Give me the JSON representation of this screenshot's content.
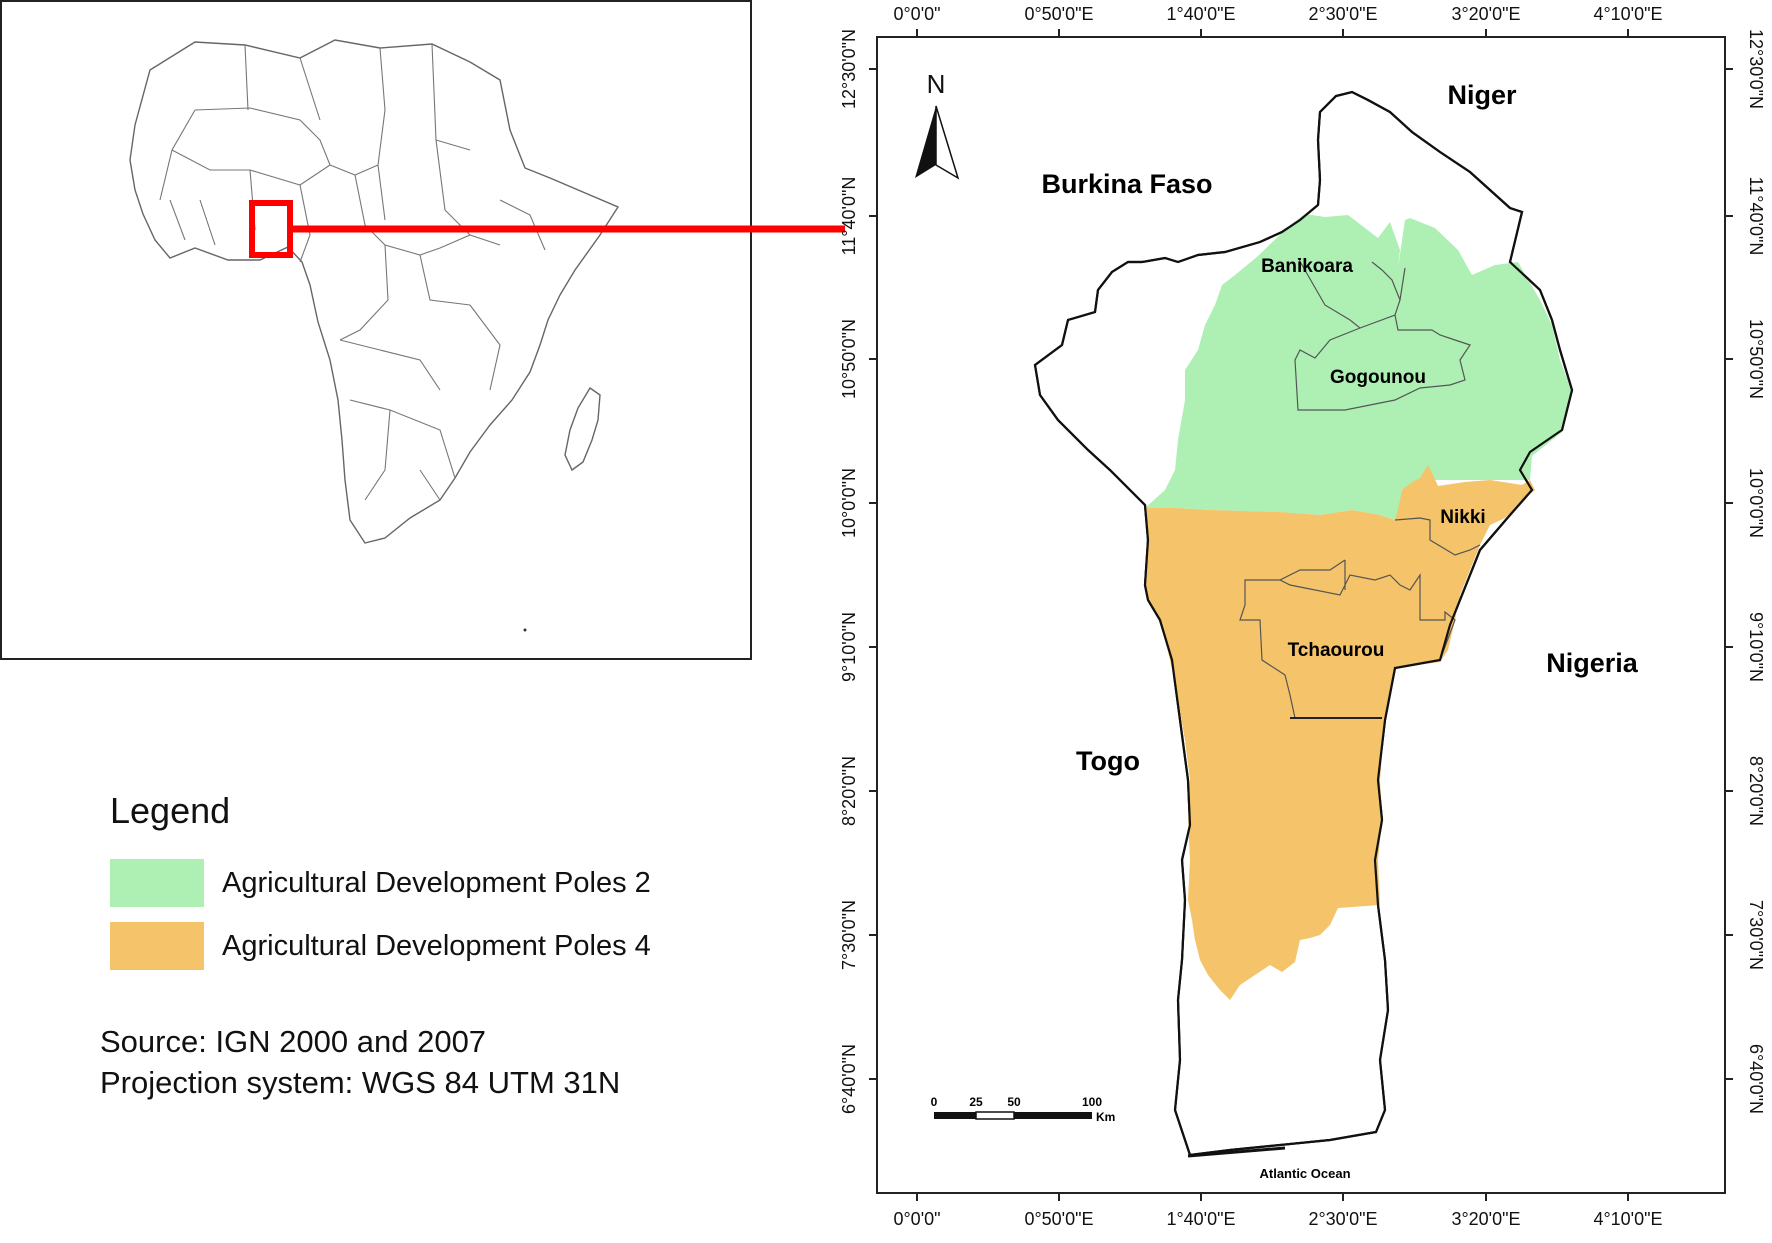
{
  "inset": {
    "highlight_color": "#ff0000"
  },
  "main_map": {
    "countries": {
      "niger": "Niger",
      "burkina": "Burkina Faso",
      "nigeria": "Nigeria",
      "togo": "Togo"
    },
    "districts": {
      "banikoara": "Banikoara",
      "gogounou": "Gogounou",
      "nikki": "Nikki",
      "tchaourou": "Tchaourou"
    },
    "ocean": "Atlantic Ocean",
    "north_arrow": "N",
    "scalebar": {
      "ticks": [
        "0",
        "25",
        "50",
        "100"
      ],
      "unit": "Km"
    },
    "lon_ticks": [
      "0°0'0\"",
      "0°50'0\"E",
      "1°40'0\"E",
      "2°30'0\"E",
      "3°20'0\"E",
      "4°10'0\"E"
    ],
    "lat_ticks": [
      "12°30'0\"N",
      "11°40'0\"N",
      "10°50'0\"N",
      "10°0'0\"N",
      "9°10'0\"N",
      "8°20'0\"N",
      "7°30'0\"N",
      "6°40'0\"N"
    ]
  },
  "legend": {
    "title": "Legend",
    "items": [
      {
        "label": "Agricultural Development Poles 2",
        "color": "#aef0b4"
      },
      {
        "label": "Agricultural Development Poles 4",
        "color": "#f4c36a"
      }
    ]
  },
  "notes": {
    "source": "Source: IGN 2000 and 2007",
    "projection": "Projection system: WGS 84 UTM 31N"
  }
}
